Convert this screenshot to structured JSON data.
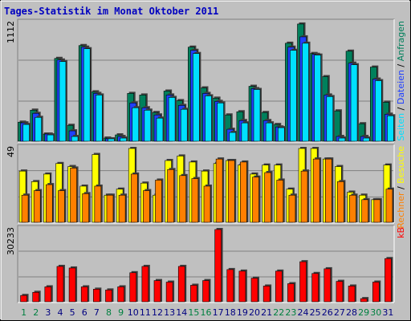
{
  "title": "Tages-Statistik im Monat Oktober 2011",
  "legend_separator": " / ",
  "categories": [
    "1",
    "2",
    "3",
    "4",
    "5",
    "6",
    "7",
    "8",
    "9",
    "10",
    "11",
    "12",
    "13",
    "14",
    "15",
    "16",
    "17",
    "18",
    "19",
    "20",
    "21",
    "22",
    "23",
    "24",
    "25",
    "26",
    "27",
    "28",
    "29",
    "30",
    "31"
  ],
  "category_colors": [
    "#008040",
    "#008040",
    "#000080",
    "#000080",
    "#000080",
    "#000080",
    "#000080",
    "#008040",
    "#008040",
    "#000080",
    "#000080",
    "#000080",
    "#000080",
    "#000080",
    "#008040",
    "#008040",
    "#000080",
    "#000080",
    "#000080",
    "#000080",
    "#000080",
    "#008040",
    "#008040",
    "#000080",
    "#000080",
    "#000080",
    "#000080",
    "#000080",
    "#008040",
    "#008040",
    "#000080"
  ],
  "chart_data": [
    {
      "type": "bar",
      "ylim": [
        0,
        1112
      ],
      "yticks": [
        1112
      ],
      "series": [
        {
          "name": "Anfragen",
          "color": "#00805C",
          "values": [
            180,
            293,
            68,
            781,
            150,
            902,
            466,
            30,
            60,
            451,
            436,
            271,
            473,
            383,
            887,
            503,
            406,
            248,
            278,
            518,
            271,
            158,
            924,
            1105,
            827,
            609,
            286,
            849,
            165,
            699,
            368
          ]
        },
        {
          "name": "Dateien",
          "color": "#2040FF",
          "values": [
            173,
            263,
            68,
            766,
            98,
            887,
            451,
            23,
            45,
            361,
            316,
            248,
            436,
            338,
            857,
            451,
            376,
            113,
            195,
            496,
            195,
            135,
            887,
            984,
            819,
            436,
            45,
            736,
            45,
            586,
            255
          ]
        },
        {
          "name": "Seiten",
          "color": "#00E0FF",
          "values": [
            158,
            225,
            60,
            751,
            45,
            872,
            436,
            23,
            30,
            316,
            293,
            218,
            413,
            301,
            827,
            428,
            361,
            83,
            173,
            488,
            173,
            128,
            857,
            924,
            812,
            421,
            30,
            721,
            30,
            571,
            240
          ]
        }
      ]
    },
    {
      "type": "bar",
      "ylim": [
        0,
        49
      ],
      "yticks": [
        49
      ],
      "series": [
        {
          "name": "Besuche",
          "color": "#FFFF00",
          "values": [
            34,
            27,
            32,
            39,
            37,
            24,
            45,
            18,
            22,
            49,
            26,
            18,
            41,
            44,
            40,
            34,
            39,
            41,
            38,
            32,
            38,
            38,
            22,
            49,
            49,
            42,
            37,
            20,
            18,
            15,
            38
          ]
        },
        {
          "name": "Rechner",
          "color": "#FF8000",
          "values": [
            18,
            21,
            25,
            21,
            36,
            19,
            24,
            18,
            18,
            32,
            21,
            28,
            35,
            31,
            29,
            24,
            42,
            41,
            40,
            30,
            33,
            28,
            18,
            34,
            42,
            42,
            27,
            18,
            15,
            15,
            22
          ]
        }
      ]
    },
    {
      "type": "bar",
      "ylim": [
        0,
        30233
      ],
      "yticks": [
        30233
      ],
      "series": [
        {
          "name": "kB",
          "color": "#FF0000",
          "values": [
            2630,
            3940,
            6240,
            14790,
            14130,
            6240,
            5260,
            4930,
            6240,
            12160,
            14790,
            8870,
            8220,
            14790,
            6900,
            8870,
            30233,
            13470,
            12820,
            9860,
            6570,
            12820,
            7560,
            16760,
            11830,
            13800,
            8540,
            6570,
            1310,
            8220,
            18070
          ]
        }
      ]
    }
  ]
}
